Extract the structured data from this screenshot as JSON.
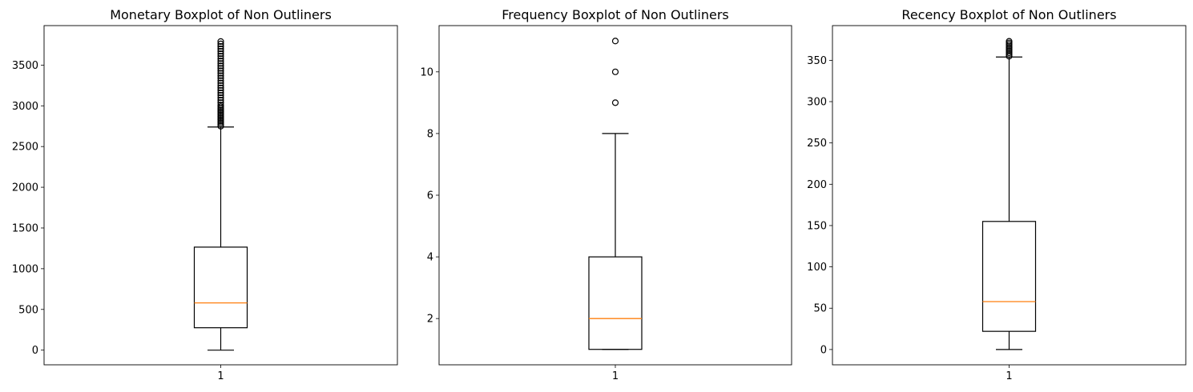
{
  "chart_data": [
    {
      "type": "boxplot",
      "title": "Monetary Boxplot of Non Outliners",
      "categories": [
        "1"
      ],
      "ylim": [
        -180,
        3985
      ],
      "yticks": [
        0,
        500,
        1000,
        1500,
        2000,
        2500,
        3000,
        3500
      ],
      "ytick_labels": [
        "0",
        "500",
        "1000",
        "1500",
        "2000",
        "2500",
        "3000",
        "3500"
      ],
      "box": {
        "whisker_low": 0,
        "q1": 275,
        "median": 580,
        "q3": 1265,
        "whisker_high": 2740
      },
      "fliers": [
        2750,
        2770,
        2790,
        2810,
        2830,
        2850,
        2870,
        2890,
        2910,
        2930,
        2950,
        2970,
        2990,
        3010,
        3040,
        3070,
        3100,
        3130,
        3160,
        3190,
        3220,
        3250,
        3280,
        3310,
        3340,
        3370,
        3400,
        3430,
        3460,
        3490,
        3520,
        3550,
        3580,
        3610,
        3640,
        3670,
        3700,
        3730,
        3760,
        3790
      ],
      "colors": {
        "box": "#000000",
        "median": "#ff7f0e",
        "flier": "#000000"
      }
    },
    {
      "type": "boxplot",
      "title": "Frequency Boxplot of Non Outliners",
      "categories": [
        "1"
      ],
      "ylim": [
        0.5,
        11.5
      ],
      "yticks": [
        2,
        4,
        6,
        8,
        10
      ],
      "ytick_labels": [
        "2",
        "4",
        "6",
        "8",
        "10"
      ],
      "box": {
        "whisker_low": 1,
        "q1": 1,
        "median": 2,
        "q3": 4,
        "whisker_high": 8
      },
      "fliers": [
        9,
        10,
        11
      ],
      "colors": {
        "box": "#000000",
        "median": "#ff7f0e",
        "flier": "#000000"
      }
    },
    {
      "type": "boxplot",
      "title": "Recency Boxplot of Non Outliners",
      "categories": [
        "1"
      ],
      "ylim": [
        -18.5,
        392
      ],
      "yticks": [
        0,
        50,
        100,
        150,
        200,
        250,
        300,
        350
      ],
      "ytick_labels": [
        "0",
        "50",
        "100",
        "150",
        "200",
        "250",
        "300",
        "350"
      ],
      "box": {
        "whisker_low": 0,
        "q1": 22,
        "median": 58,
        "q3": 155,
        "whisker_high": 354
      },
      "fliers": [
        355,
        357,
        359,
        361,
        363,
        365,
        367,
        369,
        371,
        373
      ],
      "colors": {
        "box": "#000000",
        "median": "#ff7f0e",
        "flier": "#000000"
      }
    }
  ]
}
